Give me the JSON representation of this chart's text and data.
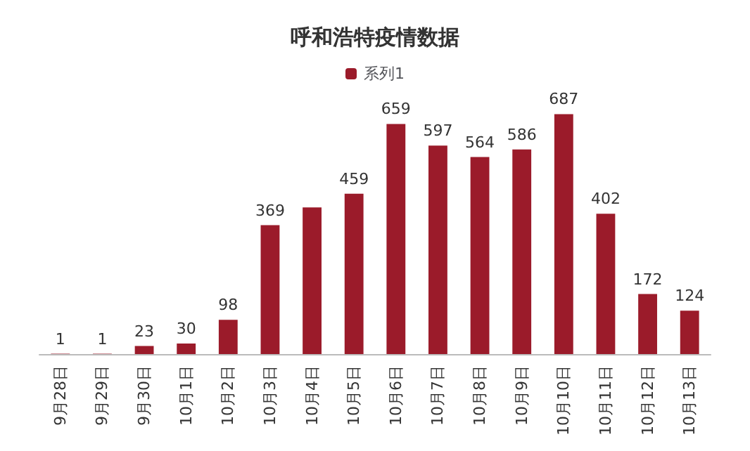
{
  "chart_data": {
    "type": "bar",
    "title": "呼和浩特疫情数据",
    "categories": [
      "9月28日",
      "9月29日",
      "9月30日",
      "10月1日",
      "10月2日",
      "10月3日",
      "10月4日",
      "10月5日",
      "10月6日",
      "10月7日",
      "10月8日",
      "10月9日",
      "10月10日",
      "10月11日",
      "10月12日",
      "10月13日"
    ],
    "series": [
      {
        "name": "系列1",
        "color": "#9b1b2a",
        "values": [
          1,
          1,
          23,
          30,
          98,
          369,
          420,
          459,
          659,
          597,
          564,
          586,
          687,
          402,
          172,
          124
        ],
        "value_labels": [
          "1",
          "1",
          "23",
          "30",
          "98",
          "369",
          null,
          "459",
          "659",
          "597",
          "564",
          "586",
          "687",
          "402",
          "172",
          "124"
        ]
      }
    ],
    "legend": "top",
    "grid": false
  }
}
